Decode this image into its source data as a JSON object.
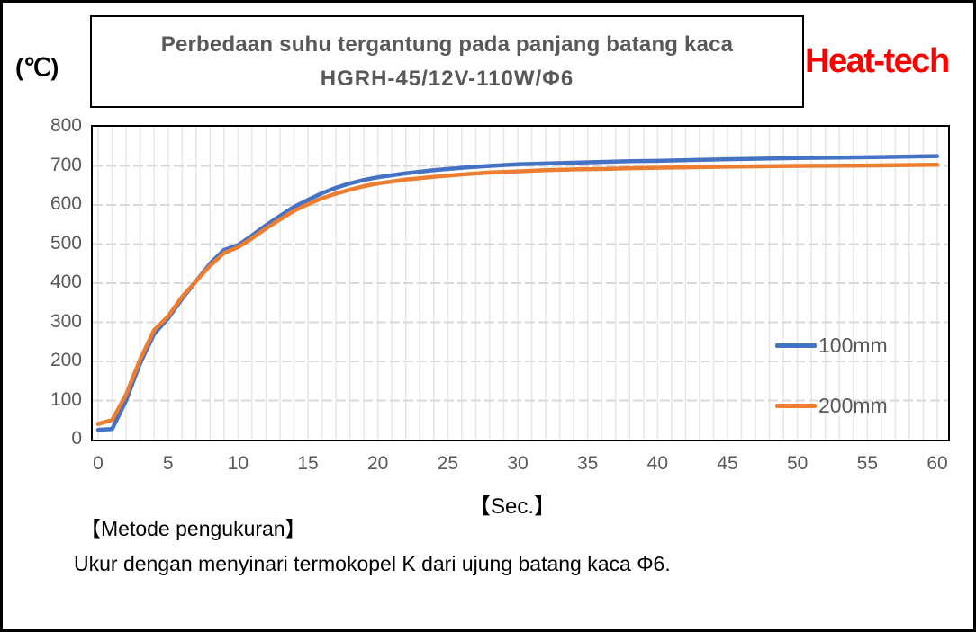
{
  "header": {
    "title": "Perbedaan suhu tergantung pada panjang batang kaca",
    "subtitle": "HGRH-45/12V-110W/Φ6",
    "brand": "Heat-tech",
    "y_axis_unit": "(℃)"
  },
  "chart_data": {
    "type": "line",
    "title": "Perbedaan suhu tergantung pada panjang batang kaca HGRH-45/12V-110W/Φ6",
    "xlabel": "【Sec.】",
    "ylabel": "(℃)",
    "xlim": [
      0,
      60
    ],
    "ylim": [
      0,
      800
    ],
    "x_ticks": [
      0,
      5,
      10,
      15,
      20,
      25,
      30,
      35,
      40,
      45,
      50,
      55,
      60
    ],
    "y_ticks": [
      0,
      100,
      200,
      300,
      400,
      500,
      600,
      700,
      800
    ],
    "grid": {
      "major_horizontal_step": 100,
      "minor_vertical_step": 1
    },
    "legend_position": "inside-right",
    "x": [
      0,
      1,
      2,
      3,
      4,
      5,
      6,
      7,
      8,
      9,
      10,
      11,
      12,
      13,
      14,
      15,
      16,
      17,
      18,
      19,
      20,
      22,
      24,
      26,
      28,
      30,
      32,
      34,
      36,
      38,
      40,
      45,
      50,
      55,
      60
    ],
    "series": [
      {
        "name": "100mm",
        "color": "#4472C4",
        "values": [
          25,
          27,
          100,
          195,
          270,
          310,
          360,
          405,
          450,
          485,
          497,
          522,
          548,
          572,
          595,
          613,
          630,
          644,
          655,
          664,
          671,
          681,
          689,
          695,
          700,
          704,
          706,
          708,
          710,
          712,
          713,
          717,
          720,
          722,
          725
        ]
      },
      {
        "name": "200mm",
        "color": "#ED7D31",
        "values": [
          40,
          50,
          115,
          205,
          280,
          315,
          365,
          405,
          445,
          477,
          492,
          515,
          540,
          563,
          585,
          602,
          617,
          629,
          639,
          648,
          655,
          665,
          672,
          678,
          683,
          686,
          689,
          691,
          692,
          694,
          695,
          698,
          700,
          701,
          703
        ]
      }
    ]
  },
  "footer": {
    "method_heading": "【Metode pengukuran】",
    "method_text": "Ukur dengan menyinari termokopel K dari ujung batang kaca Φ6."
  },
  "colors": {
    "series_100mm": "#4472C4",
    "series_200mm": "#ED7D31",
    "grid_major": "#D9D9D9",
    "grid_minor": "#E7E7E7",
    "tick_text": "#595959",
    "title_text": "#595959",
    "brand_red": "#FF0000",
    "plot_border": "#000000"
  }
}
